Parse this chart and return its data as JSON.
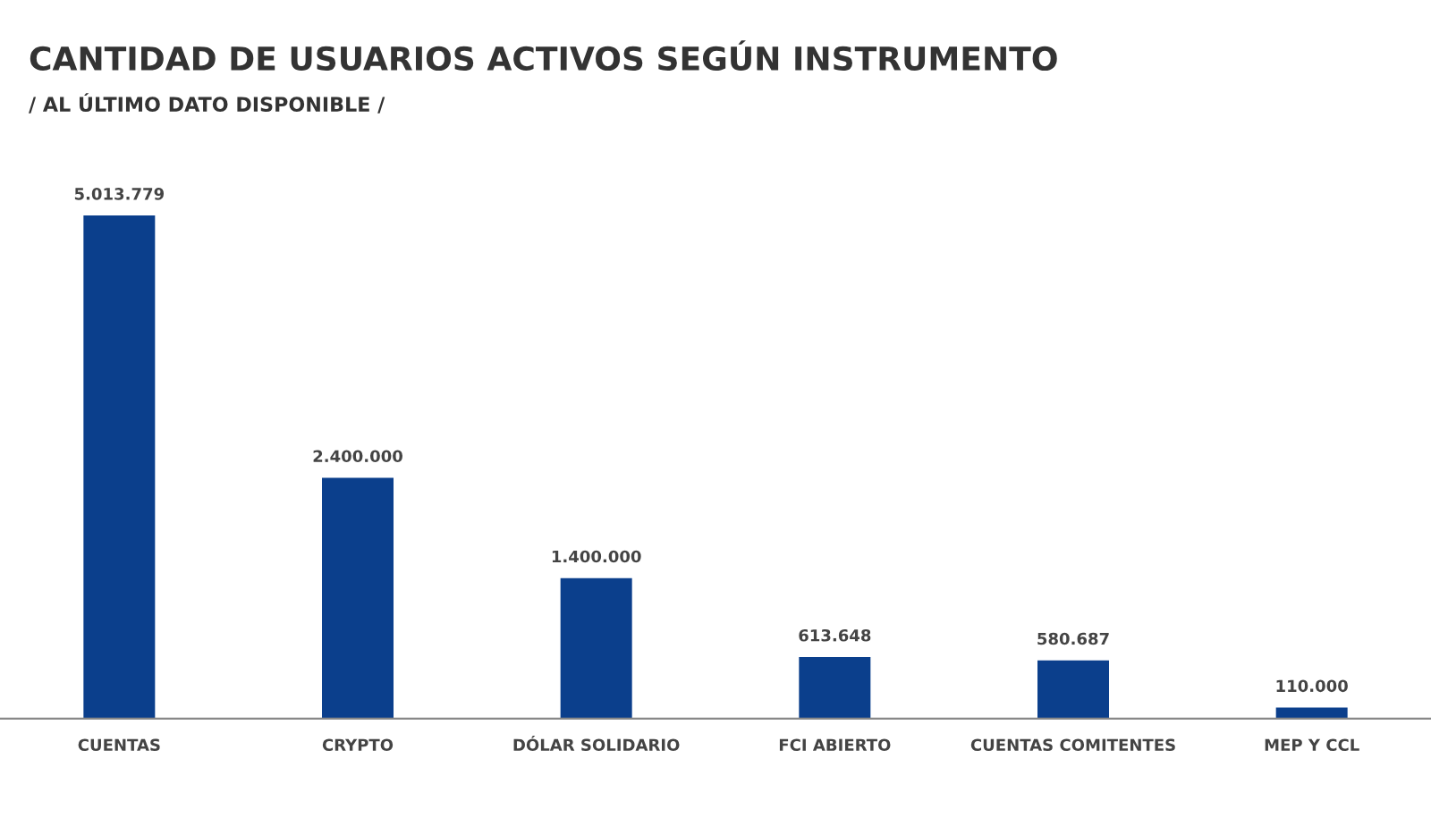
{
  "chart_data": {
    "type": "bar",
    "title": "CANTIDAD DE USUARIOS ACTIVOS SEGÚN INSTRUMENTO",
    "subtitle": "/ AL ÚLTIMO DATO DISPONIBLE /",
    "categories": [
      "CUENTAS",
      "CRYPTO",
      "DÓLAR SOLIDARIO",
      "FCI ABIERTO",
      "CUENTAS COMITENTES",
      "MEP Y CCL"
    ],
    "values": [
      5013779,
      2400000,
      1400000,
      613648,
      580687,
      110000
    ],
    "value_labels": [
      "5.013.779",
      "2.400.000",
      "1.400.000",
      "613.648",
      "580.687",
      "110.000"
    ],
    "color": "#0b3f8c",
    "tick_labels": "x",
    "grid": false,
    "legend": false
  }
}
